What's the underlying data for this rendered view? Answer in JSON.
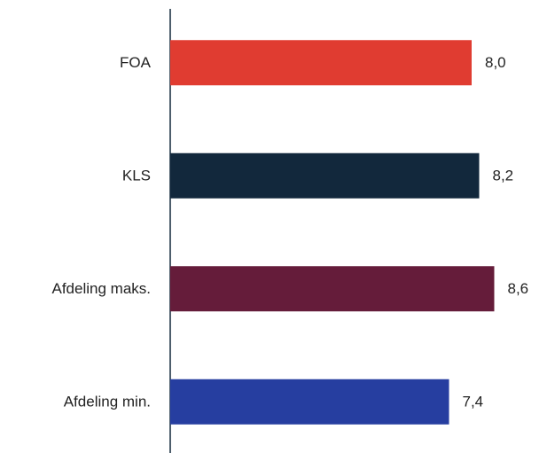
{
  "chart_data": {
    "type": "bar",
    "orientation": "horizontal",
    "categories": [
      "FOA",
      "KLS",
      "Afdeling maks.",
      "Afdeling min."
    ],
    "values": [
      8.0,
      8.2,
      8.6,
      7.4
    ],
    "value_labels": [
      "8,0",
      "8,2",
      "8,6",
      "7,4"
    ],
    "colors": [
      "#e03c31",
      "#12283c",
      "#651c3a",
      "#263ea0"
    ],
    "xlim": [
      0,
      10
    ]
  }
}
